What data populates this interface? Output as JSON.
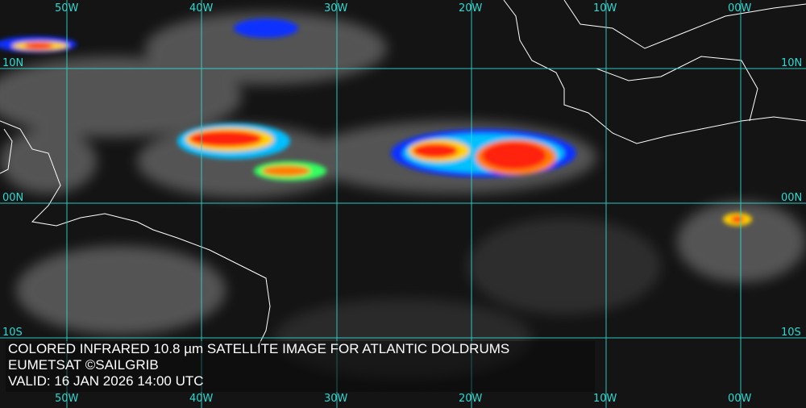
{
  "map": {
    "title_line1": "COLORED INFRARED 10.8 µm SATELLITE IMAGE FOR ATLANTIC DOLDRUMS",
    "title_line2": "EUMETSAT ©SAILGRIB",
    "valid_line": "VALID:  16 JAN 2026 14:00 UTC",
    "longitude_labels": [
      "50W",
      "40W",
      "30W",
      "20W",
      "10W",
      "00W"
    ],
    "latitude_labels": [
      "10N",
      "00N",
      "10S"
    ],
    "colors": {
      "grid": "#2fd8d0",
      "background": "#141414",
      "cloud": "#9a9a9a",
      "coast": "#ffffff",
      "cold_top_scale": [
        "#1030ff",
        "#00c0ff",
        "#30ff60",
        "#ffff00",
        "#ff8000",
        "#ff1010"
      ]
    }
  }
}
